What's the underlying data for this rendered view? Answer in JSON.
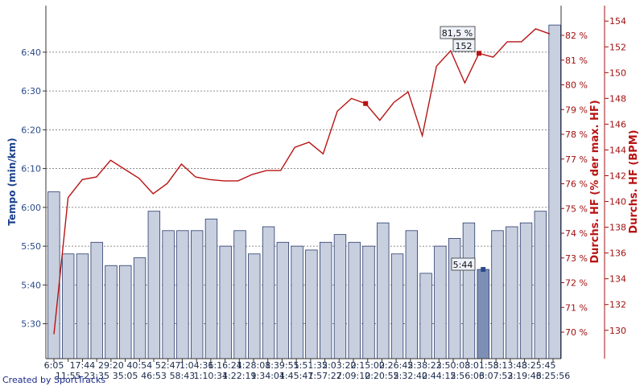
{
  "credit": "Created by SportTracks",
  "colors": {
    "bar_fill": "#c8d0e0",
    "bar_stroke": "#2a3a6a",
    "bar_selected": "#7d8fb5",
    "hr_line": "#b81414",
    "grid": "#6a6a6a",
    "left_axis": "#2a4a8a",
    "right_axis": "#a01010"
  },
  "chart_data": {
    "type": "bar",
    "title": "",
    "xlabel": "",
    "categories_top": [
      "6:05",
      "17:44",
      "29:20",
      "40:54",
      "52:47",
      "1:04:36",
      "1:16:24",
      "1:28:08",
      "1:39:55",
      "1:51:35",
      "2:03:20",
      "2:15:00",
      "2:26:45",
      "2:38:23",
      "2:50:08",
      "3:01:58",
      "3:13:48",
      "3:25:45"
    ],
    "categories_bottom": [
      "11:55",
      "23:35",
      "35:05",
      "46:53",
      "58:43",
      "1:10:34",
      "1:22:19",
      "1:34:04",
      "1:45:47",
      "1:57:27",
      "2:09:10",
      "2:20:55",
      "2:32:40",
      "2:44:15",
      "2:56:06",
      "3:07:52",
      "3:19:46",
      "3:25:56"
    ],
    "series": [
      {
        "name": "Tempo (min/km)",
        "axis": "left",
        "kind": "bar",
        "values": [
          "6:04",
          "5:48",
          "5:48",
          "5:51",
          "5:45",
          "5:45",
          "5:47",
          "5:59",
          "5:54",
          "5:54",
          "5:54",
          "5:57",
          "5:50",
          "5:54",
          "5:48",
          "5:55",
          "5:51",
          "5:50",
          "5:49",
          "5:51",
          "5:53",
          "5:51",
          "5:50",
          "5:56",
          "5:48",
          "5:54",
          "5:43",
          "5:50",
          "5:52",
          "5:56",
          "5:44",
          "5:54",
          "5:55",
          "5:56",
          "5:59",
          "6:47"
        ]
      },
      {
        "name": "Durchs. HF (BPM)",
        "axis": "right_outer",
        "kind": "line",
        "values": [
          129.7,
          140.3,
          141.7,
          141.9,
          143.2,
          142.5,
          141.8,
          140.6,
          141.4,
          142.9,
          141.9,
          141.7,
          141.6,
          141.6,
          142.1,
          142.4,
          142.4,
          144.2,
          144.6,
          143.7,
          147.0,
          148.0,
          147.6,
          146.3,
          147.7,
          148.5,
          145.1,
          150.5,
          151.7,
          149.2,
          151.5,
          151.2,
          152.4,
          152.4,
          153.4,
          153.0
        ]
      }
    ],
    "y_left": {
      "label": "Tempo (min/km)",
      "ticks": [
        "5:30",
        "5:40",
        "5:50",
        "6:00",
        "6:10",
        "6:20",
        "6:30",
        "6:40"
      ],
      "range_seconds": [
        321,
        412
      ]
    },
    "y_right_inner": {
      "label": "Durchs. HF (% der max. HF)",
      "ticks": [
        "70 %",
        "71 %",
        "72 %",
        "73 %",
        "74 %",
        "75 %",
        "76 %",
        "77 %",
        "78 %",
        "79 %",
        "80 %",
        "81 %",
        "82 %"
      ]
    },
    "y_right_outer": {
      "label": "Durchs. HF (BPM)",
      "ticks": [
        "130",
        "132",
        "134",
        "136",
        "138",
        "140",
        "142",
        "144",
        "146",
        "148",
        "150",
        "152",
        "154"
      ],
      "range": [
        127.8,
        155.2
      ]
    },
    "grid": true,
    "legend": "none",
    "selected_bar_index": 30,
    "markers": [
      {
        "series": "Durchs. HF (BPM)",
        "index": 22
      },
      {
        "series": "Durchs. HF (BPM)",
        "index": 30
      }
    ],
    "tooltips": {
      "pace": "5:44",
      "hr_percent": "81,5 %",
      "hr_bpm": "152"
    }
  }
}
